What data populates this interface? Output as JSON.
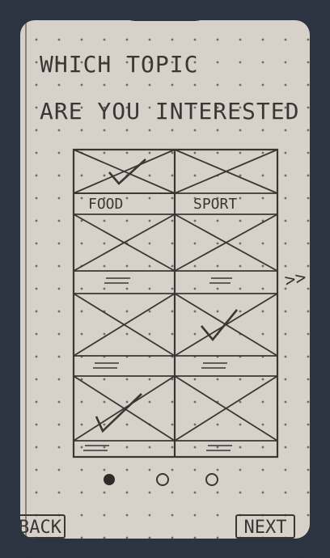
{
  "screen": {
    "title_line1": "WHICH TOPIC",
    "title_line2": "ARE YOU INTERESTED",
    "next_hint": ">>"
  },
  "topics": [
    {
      "label": "FOOD",
      "checked": true
    },
    {
      "label": "SPORT",
      "checked": false
    },
    {
      "label": "",
      "checked": false
    },
    {
      "label": "",
      "checked": true
    },
    {
      "label": "",
      "checked": true
    },
    {
      "label": "",
      "checked": false
    }
  ],
  "pagination": {
    "current": 1,
    "total": 3
  },
  "nav": {
    "back_label": "BACK",
    "next_label": "NEXT"
  },
  "colors": {
    "frame": "#2c3341",
    "paper": "#d7d1c9",
    "ink": "#3a3634"
  }
}
